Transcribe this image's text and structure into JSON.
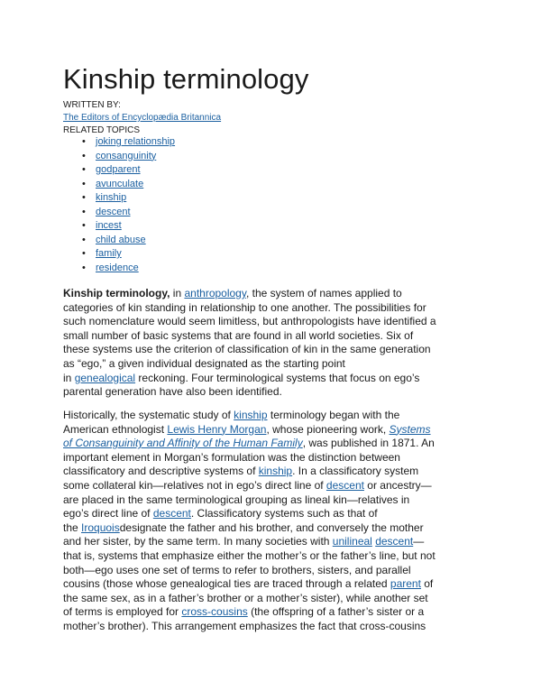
{
  "title": "Kinship terminology",
  "written_by_label": "WRITTEN BY:",
  "author": "The Editors of Encyclopædia Britannica",
  "related_topics_label": "RELATED TOPICS",
  "related_topics": [
    "joking relationship",
    "consanguinity",
    "godparent",
    "avunculate",
    "kinship",
    "descent",
    "incest",
    "child abuse",
    "family",
    "residence"
  ],
  "p1": {
    "l1": {
      "bold": "Kinship terminology,",
      "t1": " in ",
      "link": "anthropology",
      "t2": ", the system of names applied to"
    },
    "l2": "categories of kin standing in relationship to one another. The possibilities for",
    "l3": "such nomenclature would seem limitless, but anthropologists have identified a",
    "l4": "small number of basic systems that are found in all world societies. Six of",
    "l5": "these systems use the criterion of classification of kin in the same generation",
    "l6": "as “ego,” a given individual designated as the starting point",
    "l7": {
      "t1": "in ",
      "link": "genealogical",
      "t2": " reckoning. Four terminological systems that focus on ego’s"
    },
    "l8": "parental generation have also been identified."
  },
  "p2": {
    "l1": {
      "t1": "Historically, the systematic study of ",
      "link": "kinship",
      "t2": " terminology began with the"
    },
    "l2": {
      "t1": "American ethnologist ",
      "link": "Lewis Henry Morgan",
      "t2": ", whose pioneering work, ",
      "link2": "Systems"
    },
    "l3": {
      "link": "of Consanguinity and Affinity of the Human Family",
      "t2": ", was published in 1871. An"
    },
    "l4": "important element in Morgan’s formulation was the distinction between",
    "l5": {
      "t1": "classificatory and descriptive systems of ",
      "link": "kinship",
      "t2": ". In a classificatory system"
    },
    "l6": {
      "t1": "some collateral kin—relatives not in ego’s direct line of ",
      "link": "descent",
      "t2": " or ancestry—"
    },
    "l7": "are placed in the same terminological grouping as lineal kin—relatives in",
    "l8": {
      "t1": "ego’s direct line of ",
      "link": "descent",
      "t2": ". Classificatory systems such as that of"
    },
    "l9": {
      "t1": "the ",
      "link": "Iroquois",
      "t2": "designate the father and his brother, and conversely the mother"
    },
    "l10": "and her sister, by the same term. In many societies with ",
    "l10_link1": "unilineal",
    "l10_sp": " ",
    "l10_link2": "descent",
    "l10_t3": "—",
    "l11": "that is, systems that emphasize either the mother’s or the father’s line, but not",
    "l12": "both—ego uses one set of terms to refer to brothers, sisters, and parallel",
    "l13": {
      "t1": "cousins (those whose genealogical ties are traced through a related ",
      "link": "parent",
      "t2": " of"
    },
    "l14": "the same sex, as in a father’s brother or a mother’s sister), while another set",
    "l15": {
      "t1": "of terms is employed for ",
      "link": "cross-cousins",
      "t2": " (the offspring of a father’s sister or a"
    },
    "l16": "mother’s brother). This arrangement emphasizes the fact that cross-cousins"
  }
}
